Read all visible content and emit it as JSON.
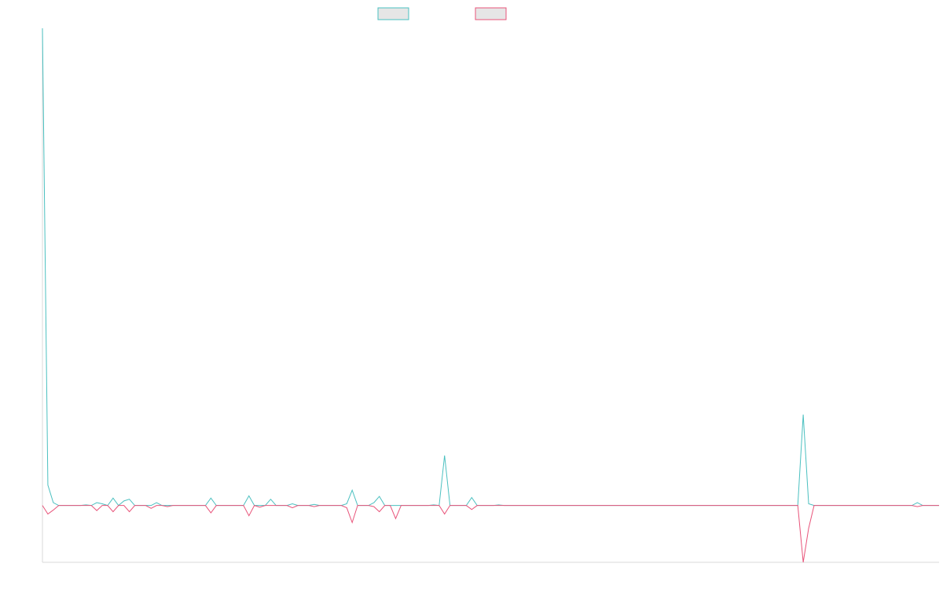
{
  "chart_data": {
    "type": "line",
    "title": "",
    "xlabel": "",
    "ylabel": "",
    "grid": false,
    "legend_position": "top-center",
    "x_count": 166,
    "ylim": [
      -10,
      84
    ],
    "series": [
      {
        "color": "#4bc0c0",
        "legend_fill": "#e6e6e6",
        "points": [
          [
            0,
            84
          ],
          [
            1,
            3.6
          ],
          [
            2,
            0.5
          ],
          [
            3,
            0
          ],
          [
            4,
            0
          ],
          [
            5,
            0
          ],
          [
            6,
            0
          ],
          [
            7,
            0
          ],
          [
            8,
            0.1
          ],
          [
            9,
            0
          ],
          [
            10,
            0.5
          ],
          [
            11,
            0.3
          ],
          [
            12,
            0
          ],
          [
            13,
            1.3
          ],
          [
            14,
            0
          ],
          [
            15,
            0.8
          ],
          [
            16,
            1.1
          ],
          [
            17,
            0
          ],
          [
            18,
            0
          ],
          [
            19,
            0
          ],
          [
            20,
            0
          ],
          [
            21,
            0.5
          ],
          [
            22,
            0
          ],
          [
            23,
            0
          ],
          [
            24,
            0
          ],
          [
            25,
            0
          ],
          [
            26,
            0
          ],
          [
            27,
            0
          ],
          [
            28,
            0
          ],
          [
            29,
            0
          ],
          [
            30,
            0
          ],
          [
            31,
            1.3
          ],
          [
            32,
            0
          ],
          [
            33,
            0
          ],
          [
            34,
            0
          ],
          [
            35,
            0
          ],
          [
            36,
            0
          ],
          [
            37,
            0
          ],
          [
            38,
            1.7
          ],
          [
            39,
            0
          ],
          [
            40,
            0
          ],
          [
            41,
            0
          ],
          [
            42,
            1.1
          ],
          [
            43,
            0
          ],
          [
            44,
            0
          ],
          [
            45,
            0
          ],
          [
            46,
            0.3
          ],
          [
            47,
            0
          ],
          [
            48,
            0
          ],
          [
            49,
            0
          ],
          [
            50,
            0.2
          ],
          [
            51,
            0
          ],
          [
            52,
            0
          ],
          [
            53,
            0
          ],
          [
            54,
            0
          ],
          [
            55,
            0
          ],
          [
            56,
            0.3
          ],
          [
            57,
            2.7
          ],
          [
            58,
            0
          ],
          [
            59,
            0
          ],
          [
            60,
            0
          ],
          [
            61,
            0.5
          ],
          [
            62,
            1.6
          ],
          [
            63,
            0
          ],
          [
            64,
            0
          ],
          [
            65,
            0
          ],
          [
            66,
            0
          ],
          [
            67,
            0
          ],
          [
            68,
            0
          ],
          [
            69,
            0
          ],
          [
            70,
            0
          ],
          [
            71,
            0
          ],
          [
            72,
            0.1
          ],
          [
            73,
            0
          ],
          [
            74,
            8.8
          ],
          [
            75,
            0
          ],
          [
            76,
            0
          ],
          [
            77,
            0
          ],
          [
            78,
            0
          ],
          [
            79,
            1.4
          ],
          [
            80,
            0
          ],
          [
            81,
            0
          ],
          [
            82,
            0
          ],
          [
            83,
            0
          ],
          [
            84,
            0.1
          ],
          [
            85,
            0
          ],
          [
            86,
            0
          ],
          [
            87,
            0
          ],
          [
            88,
            0
          ],
          [
            89,
            0
          ],
          [
            90,
            0
          ],
          [
            91,
            0
          ],
          [
            92,
            0
          ],
          [
            93,
            0
          ],
          [
            94,
            0
          ],
          [
            95,
            0
          ],
          [
            96,
            0
          ],
          [
            97,
            0
          ],
          [
            98,
            0
          ],
          [
            99,
            0
          ],
          [
            100,
            0
          ],
          [
            101,
            0
          ],
          [
            102,
            0
          ],
          [
            103,
            0
          ],
          [
            104,
            0
          ],
          [
            105,
            0
          ],
          [
            106,
            0
          ],
          [
            107,
            0
          ],
          [
            108,
            0
          ],
          [
            109,
            0
          ],
          [
            110,
            0
          ],
          [
            111,
            0
          ],
          [
            112,
            0
          ],
          [
            113,
            0
          ],
          [
            114,
            0
          ],
          [
            115,
            0
          ],
          [
            116,
            0
          ],
          [
            117,
            0
          ],
          [
            118,
            0
          ],
          [
            119,
            0
          ],
          [
            120,
            0
          ],
          [
            121,
            0
          ],
          [
            122,
            0
          ],
          [
            123,
            0
          ],
          [
            124,
            0
          ],
          [
            125,
            0
          ],
          [
            126,
            0
          ],
          [
            127,
            0
          ],
          [
            128,
            0
          ],
          [
            129,
            0
          ],
          [
            130,
            0
          ],
          [
            131,
            0
          ],
          [
            132,
            0
          ],
          [
            133,
            0
          ],
          [
            134,
            0
          ],
          [
            135,
            0
          ],
          [
            136,
            0
          ],
          [
            137,
            0
          ],
          [
            138,
            0
          ],
          [
            139,
            0
          ],
          [
            140,
            16
          ],
          [
            141,
            0.3
          ],
          [
            142,
            0
          ],
          [
            143,
            0
          ],
          [
            144,
            0
          ],
          [
            145,
            0
          ],
          [
            146,
            0
          ],
          [
            147,
            0
          ],
          [
            148,
            0
          ],
          [
            149,
            0
          ],
          [
            150,
            0
          ],
          [
            151,
            0
          ],
          [
            152,
            0
          ],
          [
            153,
            0
          ],
          [
            154,
            0
          ],
          [
            155,
            0
          ],
          [
            156,
            0
          ],
          [
            157,
            0
          ],
          [
            158,
            0
          ],
          [
            159,
            0
          ],
          [
            160,
            0
          ],
          [
            161,
            0.5
          ],
          [
            162,
            0
          ],
          [
            163,
            0
          ],
          [
            164,
            0
          ],
          [
            165,
            0
          ]
        ]
      },
      {
        "color": "#e8547a",
        "legend_fill": "#e6e6e6",
        "points": [
          [
            0,
            0
          ],
          [
            1,
            -1.5
          ],
          [
            2,
            -0.8
          ],
          [
            3,
            0
          ],
          [
            4,
            0
          ],
          [
            5,
            0
          ],
          [
            6,
            0
          ],
          [
            7,
            0
          ],
          [
            8,
            0
          ],
          [
            9,
            0
          ],
          [
            10,
            -0.9
          ],
          [
            11,
            0
          ],
          [
            12,
            0
          ],
          [
            13,
            -1.1
          ],
          [
            14,
            0
          ],
          [
            15,
            0
          ],
          [
            16,
            -1.1
          ],
          [
            17,
            0
          ],
          [
            18,
            0
          ],
          [
            19,
            0
          ],
          [
            20,
            -0.5
          ],
          [
            21,
            0
          ],
          [
            22,
            0
          ],
          [
            23,
            -0.2
          ],
          [
            24,
            0
          ],
          [
            25,
            0
          ],
          [
            26,
            0
          ],
          [
            27,
            0
          ],
          [
            28,
            0
          ],
          [
            29,
            0
          ],
          [
            30,
            0
          ],
          [
            31,
            -1.3
          ],
          [
            32,
            0
          ],
          [
            33,
            0
          ],
          [
            34,
            0
          ],
          [
            35,
            0
          ],
          [
            36,
            0
          ],
          [
            37,
            0
          ],
          [
            38,
            -1.8
          ],
          [
            39,
            0
          ],
          [
            40,
            -0.3
          ],
          [
            41,
            0
          ],
          [
            42,
            0
          ],
          [
            43,
            0
          ],
          [
            44,
            0
          ],
          [
            45,
            0
          ],
          [
            46,
            -0.4
          ],
          [
            47,
            0
          ],
          [
            48,
            0
          ],
          [
            49,
            0
          ],
          [
            50,
            -0.2
          ],
          [
            51,
            0
          ],
          [
            52,
            0
          ],
          [
            53,
            0
          ],
          [
            54,
            0
          ],
          [
            55,
            0
          ],
          [
            56,
            -0.4
          ],
          [
            57,
            -3
          ],
          [
            58,
            0
          ],
          [
            59,
            0
          ],
          [
            60,
            0
          ],
          [
            61,
            -0.2
          ],
          [
            62,
            -1.1
          ],
          [
            63,
            0
          ],
          [
            64,
            0
          ],
          [
            65,
            -2.3
          ],
          [
            66,
            0
          ],
          [
            67,
            0
          ],
          [
            68,
            0
          ],
          [
            69,
            0
          ],
          [
            70,
            0
          ],
          [
            71,
            0
          ],
          [
            72,
            0
          ],
          [
            73,
            0
          ],
          [
            74,
            -1.5
          ],
          [
            75,
            0
          ],
          [
            76,
            0
          ],
          [
            77,
            0
          ],
          [
            78,
            0
          ],
          [
            79,
            -0.7
          ],
          [
            80,
            0
          ],
          [
            81,
            0
          ],
          [
            82,
            0
          ],
          [
            83,
            0
          ],
          [
            84,
            0
          ],
          [
            85,
            0
          ],
          [
            86,
            0
          ],
          [
            87,
            0
          ],
          [
            88,
            0
          ],
          [
            89,
            0
          ],
          [
            90,
            0
          ],
          [
            91,
            0
          ],
          [
            92,
            0
          ],
          [
            93,
            0
          ],
          [
            94,
            0
          ],
          [
            95,
            0
          ],
          [
            96,
            0
          ],
          [
            97,
            0
          ],
          [
            98,
            0
          ],
          [
            99,
            0
          ],
          [
            100,
            0
          ],
          [
            101,
            0
          ],
          [
            102,
            0
          ],
          [
            103,
            0
          ],
          [
            104,
            0
          ],
          [
            105,
            0
          ],
          [
            106,
            0
          ],
          [
            107,
            0
          ],
          [
            108,
            0
          ],
          [
            109,
            0
          ],
          [
            110,
            0
          ],
          [
            111,
            0
          ],
          [
            112,
            0
          ],
          [
            113,
            0
          ],
          [
            114,
            0
          ],
          [
            115,
            0
          ],
          [
            116,
            0
          ],
          [
            117,
            0
          ],
          [
            118,
            0
          ],
          [
            119,
            0
          ],
          [
            120,
            0
          ],
          [
            121,
            0
          ],
          [
            122,
            0
          ],
          [
            123,
            0
          ],
          [
            124,
            0
          ],
          [
            125,
            0
          ],
          [
            126,
            0
          ],
          [
            127,
            0
          ],
          [
            128,
            0
          ],
          [
            129,
            0
          ],
          [
            130,
            0
          ],
          [
            131,
            0
          ],
          [
            132,
            0
          ],
          [
            133,
            0
          ],
          [
            134,
            0
          ],
          [
            135,
            0
          ],
          [
            136,
            0
          ],
          [
            137,
            0
          ],
          [
            138,
            0
          ],
          [
            139,
            0
          ],
          [
            140,
            -10
          ],
          [
            141,
            -4
          ],
          [
            142,
            0
          ],
          [
            143,
            0
          ],
          [
            144,
            0
          ],
          [
            145,
            0
          ],
          [
            146,
            0
          ],
          [
            147,
            0
          ],
          [
            148,
            0
          ],
          [
            149,
            0
          ],
          [
            150,
            0
          ],
          [
            151,
            0
          ],
          [
            152,
            0
          ],
          [
            153,
            0
          ],
          [
            154,
            0
          ],
          [
            155,
            0
          ],
          [
            156,
            0
          ],
          [
            157,
            0
          ],
          [
            158,
            0
          ],
          [
            159,
            0
          ],
          [
            160,
            0
          ],
          [
            161,
            -0.2
          ],
          [
            162,
            0
          ],
          [
            163,
            0
          ],
          [
            164,
            0
          ],
          [
            165,
            0
          ]
        ]
      }
    ]
  }
}
